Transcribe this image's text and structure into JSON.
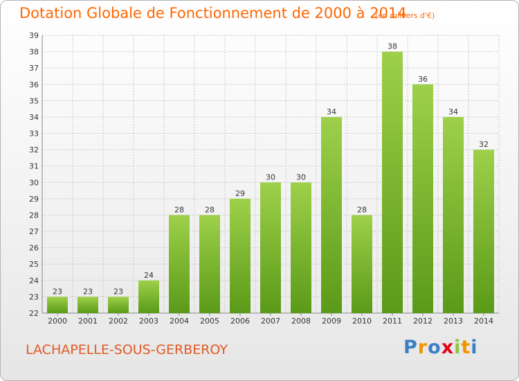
{
  "title": "Dotation Globale de Fonctionnement de 2000 à 2014",
  "unit_note": "(en milliers d'€)",
  "commune": "LACHAPELLE-SOUS-GERBEROY",
  "brand": {
    "letters": [
      "P",
      "r",
      "o",
      "x",
      "i",
      "t",
      "i"
    ]
  },
  "colors": {
    "title": "#ff6600",
    "bar_top": "#9ed04a",
    "bar_bottom": "#5a9a18",
    "grid": "#c8c8c8",
    "brand": [
      "#3a7fc4",
      "#f29400",
      "#3a7fc4",
      "#e2001a",
      "#8cc63f",
      "#f29400",
      "#3a7fc4"
    ]
  },
  "chart_data": {
    "type": "bar",
    "categories": [
      "2000",
      "2001",
      "2002",
      "2003",
      "2004",
      "2005",
      "2006",
      "2007",
      "2008",
      "2009",
      "2010",
      "2011",
      "2012",
      "2013",
      "2014"
    ],
    "values": [
      23,
      23,
      23,
      24,
      28,
      28,
      29,
      30,
      30,
      34,
      28,
      38,
      36,
      34,
      32
    ],
    "ylim": [
      22,
      39
    ],
    "yticks": [
      22,
      23,
      24,
      25,
      26,
      27,
      28,
      29,
      30,
      31,
      32,
      33,
      34,
      35,
      36,
      37,
      38,
      39
    ],
    "grid": true,
    "title": "Dotation Globale de Fonctionnement de 2000 à 2014",
    "xlabel": "",
    "ylabel": ""
  }
}
